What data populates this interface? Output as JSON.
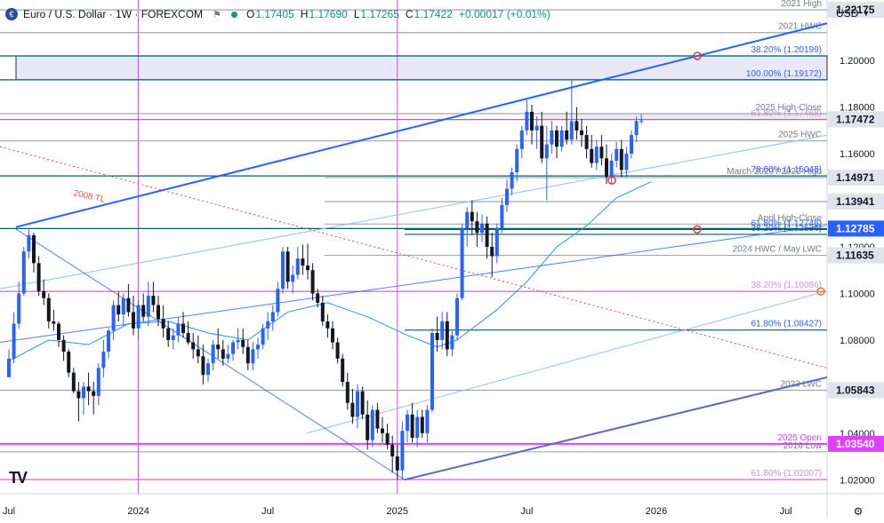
{
  "header": {
    "symbol": "Euro / U.S. Dollar · 1W · FOREXCOM",
    "open_label": "O",
    "open": "1.17405",
    "high_label": "H",
    "high": "1.17690",
    "low_label": "L",
    "low": "1.17265",
    "close_label": "C",
    "close": "1.17422",
    "change": "+0.00017 (+0.01%)",
    "currency": "USD"
  },
  "colors": {
    "up": "#2962ff",
    "down": "#131722",
    "fib_blue": "#2962ff",
    "fib_pink": "#ce93d8",
    "magenta": "#e040fb",
    "orange": "#f57c00",
    "red_trend": "#f44336",
    "purple_channel": "#5c6bc0",
    "level_grey": "#b2b5be",
    "teal_line": "#006064"
  },
  "chart_data": {
    "type": "candlestick",
    "timeframe": "1W",
    "ylim": [
      1.014,
      1.226
    ],
    "y_ticks": [
      1.02,
      1.04,
      1.06,
      1.08,
      1.1,
      1.12,
      1.14,
      1.16,
      1.18,
      1.2
    ],
    "y_tick_labels": [
      "1.02000",
      "1.04000",
      "1.06000",
      "1.08000",
      "1.10000",
      "1.12000",
      "1.14000",
      "1.16000",
      "1.18000",
      "1.20000"
    ],
    "x_ticks": [
      {
        "label": "Jul",
        "t": 0
      },
      {
        "label": "2024",
        "t": 26
      },
      {
        "label": "Jul",
        "t": 52
      },
      {
        "label": "2025",
        "t": 78
      },
      {
        "label": "Jul",
        "t": 104
      },
      {
        "label": "2026",
        "t": 130
      },
      {
        "label": "Jul",
        "t": 156
      }
    ],
    "candles": [
      [
        1.064,
        1.076,
        1.065,
        1.072
      ],
      [
        1.072,
        1.092,
        1.07,
        1.087
      ],
      [
        1.087,
        1.105,
        1.085,
        1.1
      ],
      [
        1.1,
        1.12,
        1.099,
        1.118
      ],
      [
        1.118,
        1.1276,
        1.115,
        1.125
      ],
      [
        1.125,
        1.126,
        1.109,
        1.113
      ],
      [
        1.113,
        1.116,
        1.099,
        1.101
      ],
      [
        1.101,
        1.106,
        1.095,
        1.098
      ],
      [
        1.098,
        1.1,
        1.085,
        1.088
      ],
      [
        1.088,
        1.093,
        1.084,
        1.087
      ],
      [
        1.087,
        1.088,
        1.077,
        1.08
      ],
      [
        1.08,
        1.082,
        1.071,
        1.075
      ],
      [
        1.075,
        1.076,
        1.064,
        1.066
      ],
      [
        1.066,
        1.068,
        1.057,
        1.058
      ],
      [
        1.058,
        1.062,
        1.045,
        1.055
      ],
      [
        1.055,
        1.062,
        1.048,
        1.06
      ],
      [
        1.06,
        1.066,
        1.052,
        1.058
      ],
      [
        1.058,
        1.062,
        1.048,
        1.056
      ],
      [
        1.056,
        1.07,
        1.052,
        1.068
      ],
      [
        1.068,
        1.08,
        1.064,
        1.075
      ],
      [
        1.075,
        1.085,
        1.072,
        1.084
      ],
      [
        1.084,
        1.097,
        1.08,
        1.095
      ],
      [
        1.095,
        1.101,
        1.088,
        1.091
      ],
      [
        1.091,
        1.1,
        1.086,
        1.098
      ],
      [
        1.098,
        1.104,
        1.09,
        1.092
      ],
      [
        1.092,
        1.099,
        1.082,
        1.085
      ],
      [
        1.085,
        1.097,
        1.08,
        1.095
      ],
      [
        1.095,
        1.1,
        1.088,
        1.09
      ],
      [
        1.09,
        1.105,
        1.086,
        1.099
      ],
      [
        1.099,
        1.105,
        1.092,
        1.095
      ],
      [
        1.095,
        1.099,
        1.086,
        1.089
      ],
      [
        1.089,
        1.095,
        1.081,
        1.085
      ],
      [
        1.085,
        1.088,
        1.077,
        1.08
      ],
      [
        1.08,
        1.085,
        1.076,
        1.082
      ],
      [
        1.082,
        1.09,
        1.079,
        1.087
      ],
      [
        1.087,
        1.092,
        1.081,
        1.083
      ],
      [
        1.083,
        1.088,
        1.078,
        1.079
      ],
      [
        1.079,
        1.083,
        1.072,
        1.076
      ],
      [
        1.076,
        1.082,
        1.07,
        1.073
      ],
      [
        1.073,
        1.078,
        1.061,
        1.065
      ],
      [
        1.065,
        1.072,
        1.062,
        1.07
      ],
      [
        1.07,
        1.08,
        1.067,
        1.078
      ],
      [
        1.078,
        1.085,
        1.072,
        1.076
      ],
      [
        1.076,
        1.08,
        1.069,
        1.072
      ],
      [
        1.072,
        1.078,
        1.07,
        1.074
      ],
      [
        1.074,
        1.08,
        1.071,
        1.079
      ],
      [
        1.079,
        1.085,
        1.076,
        1.08
      ],
      [
        1.08,
        1.085,
        1.074,
        1.077
      ],
      [
        1.077,
        1.08,
        1.067,
        1.07
      ],
      [
        1.07,
        1.079,
        1.067,
        1.076
      ],
      [
        1.076,
        1.081,
        1.072,
        1.078
      ],
      [
        1.078,
        1.087,
        1.076,
        1.085
      ],
      [
        1.085,
        1.092,
        1.08,
        1.088
      ],
      [
        1.088,
        1.095,
        1.084,
        1.092
      ],
      [
        1.092,
        1.105,
        1.09,
        1.102
      ],
      [
        1.102,
        1.12,
        1.1,
        1.118
      ],
      [
        1.118,
        1.12,
        1.102,
        1.105
      ],
      [
        1.105,
        1.112,
        1.1,
        1.108
      ],
      [
        1.108,
        1.12,
        1.106,
        1.115
      ],
      [
        1.115,
        1.121,
        1.108,
        1.112
      ],
      [
        1.112,
        1.1214,
        1.106,
        1.11
      ],
      [
        1.11,
        1.113,
        1.097,
        1.1
      ],
      [
        1.1,
        1.102,
        1.094,
        1.096
      ],
      [
        1.096,
        1.099,
        1.086,
        1.088
      ],
      [
        1.088,
        1.091,
        1.081,
        1.085
      ],
      [
        1.085,
        1.088,
        1.076,
        1.079
      ],
      [
        1.079,
        1.081,
        1.07,
        1.072
      ],
      [
        1.072,
        1.074,
        1.06,
        1.062
      ],
      [
        1.062,
        1.066,
        1.05,
        1.053
      ],
      [
        1.053,
        1.059,
        1.044,
        1.047
      ],
      [
        1.047,
        1.061,
        1.042,
        1.058
      ],
      [
        1.058,
        1.06,
        1.046,
        1.048
      ],
      [
        1.048,
        1.054,
        1.033,
        1.037
      ],
      [
        1.037,
        1.052,
        1.034,
        1.05
      ],
      [
        1.05,
        1.053,
        1.04,
        1.042
      ],
      [
        1.042,
        1.047,
        1.036,
        1.04
      ],
      [
        1.04,
        1.044,
        1.033,
        1.035
      ],
      [
        1.035,
        1.039,
        1.023,
        1.03
      ],
      [
        1.03,
        1.035,
        1.02,
        1.024
      ],
      [
        1.024,
        1.045,
        1.02,
        1.041
      ],
      [
        1.041,
        1.05,
        1.036,
        1.048
      ],
      [
        1.048,
        1.053,
        1.036,
        1.038
      ],
      [
        1.038,
        1.05,
        1.034,
        1.047
      ],
      [
        1.047,
        1.05,
        1.038,
        1.04
      ],
      [
        1.04,
        1.052,
        1.036,
        1.05
      ],
      [
        1.05,
        1.085,
        1.049,
        1.083
      ],
      [
        1.083,
        1.09,
        1.075,
        1.08
      ],
      [
        1.08,
        1.092,
        1.076,
        1.088
      ],
      [
        1.088,
        1.092,
        1.073,
        1.076
      ],
      [
        1.076,
        1.084,
        1.073,
        1.082
      ],
      [
        1.082,
        1.1,
        1.08,
        1.098
      ],
      [
        1.098,
        1.13,
        1.097,
        1.128
      ],
      [
        1.128,
        1.137,
        1.12,
        1.135
      ],
      [
        1.135,
        1.14,
        1.125,
        1.131
      ],
      [
        1.131,
        1.135,
        1.12,
        1.126
      ],
      [
        1.126,
        1.134,
        1.122,
        1.13
      ],
      [
        1.13,
        1.133,
        1.115,
        1.12
      ],
      [
        1.12,
        1.126,
        1.107,
        1.116
      ],
      [
        1.116,
        1.13,
        1.113,
        1.128
      ],
      [
        1.128,
        1.141,
        1.126,
        1.138
      ],
      [
        1.138,
        1.149,
        1.135,
        1.145
      ],
      [
        1.145,
        1.154,
        1.142,
        1.152
      ],
      [
        1.152,
        1.164,
        1.148,
        1.162
      ],
      [
        1.162,
        1.172,
        1.158,
        1.17
      ],
      [
        1.17,
        1.183,
        1.168,
        1.178
      ],
      [
        1.178,
        1.181,
        1.164,
        1.17
      ],
      [
        1.17,
        1.176,
        1.162,
        1.172
      ],
      [
        1.172,
        1.178,
        1.156,
        1.158
      ],
      [
        1.158,
        1.172,
        1.14,
        1.164
      ],
      [
        1.164,
        1.174,
        1.16,
        1.17
      ],
      [
        1.17,
        1.172,
        1.158,
        1.163
      ],
      [
        1.163,
        1.172,
        1.161,
        1.17
      ],
      [
        1.17,
        1.178,
        1.164,
        1.166
      ],
      [
        1.166,
        1.192,
        1.164,
        1.174
      ],
      [
        1.174,
        1.18,
        1.166,
        1.17
      ],
      [
        1.17,
        1.175,
        1.163,
        1.168
      ],
      [
        1.168,
        1.172,
        1.158,
        1.162
      ],
      [
        1.162,
        1.168,
        1.154,
        1.156
      ],
      [
        1.156,
        1.166,
        1.153,
        1.163
      ],
      [
        1.163,
        1.168,
        1.155,
        1.158
      ],
      [
        1.158,
        1.164,
        1.147,
        1.15
      ],
      [
        1.15,
        1.16,
        1.147,
        1.157
      ],
      [
        1.157,
        1.165,
        1.154,
        1.162
      ],
      [
        1.162,
        1.166,
        1.15,
        1.153
      ],
      [
        1.153,
        1.163,
        1.15,
        1.16
      ],
      [
        1.16,
        1.17,
        1.158,
        1.168
      ],
      [
        1.168,
        1.176,
        1.165,
        1.174
      ],
      [
        1.174,
        1.1769,
        1.1727,
        1.1742
      ]
    ],
    "moving_average": [
      [
        0,
        1.071
      ],
      [
        8,
        1.08
      ],
      [
        16,
        1.078
      ],
      [
        24,
        1.087
      ],
      [
        32,
        1.088
      ],
      [
        40,
        1.083
      ],
      [
        48,
        1.08
      ],
      [
        56,
        1.092
      ],
      [
        64,
        1.096
      ],
      [
        72,
        1.09
      ],
      [
        80,
        1.082
      ],
      [
        86,
        1.077
      ],
      [
        90,
        1.08
      ],
      [
        98,
        1.093
      ],
      [
        104,
        1.105
      ],
      [
        110,
        1.12
      ],
      [
        116,
        1.129
      ],
      [
        122,
        1.141
      ],
      [
        129,
        1.148
      ]
    ],
    "levels": [
      {
        "value": 1.22175,
        "label": "2021 High",
        "style": "grey"
      },
      {
        "value": 1.212,
        "label": "2021 HWC",
        "style": "grey"
      },
      {
        "value": 1.20199,
        "label": "38.20% (1.20199)",
        "style": "fib-blue"
      },
      {
        "value": 1.19172,
        "label": "100.00% (1.19172)",
        "style": "fib-blue"
      },
      {
        "value": 1.17468,
        "label": "61.80% (1.17468)",
        "style": "fib-pink"
      },
      {
        "value": 1.1772,
        "label": "2025 High-Close",
        "style": "grey"
      },
      {
        "value": 1.1655,
        "label": "2025 HWC",
        "style": "grey"
      },
      {
        "value": 1.14971,
        "label": "March 2020 / 2022 High",
        "style": "grey"
      },
      {
        "value": 1.15045,
        "label": "78.60% (1.15045)",
        "style": "fib-blue"
      },
      {
        "value": 1.13941,
        "label": "",
        "style": "grey"
      },
      {
        "value": 1.1298,
        "label": "April High-Close",
        "style": "grey"
      },
      {
        "value": 1.12536,
        "label": "38.20% (1.12536)",
        "style": "fib-blue"
      },
      {
        "value": 1.12785,
        "label": "",
        "style": "teal"
      },
      {
        "value": 1.12748,
        "label": "61.80% (1.12748)",
        "style": "fib-blue"
      },
      {
        "value": 1.11635,
        "label": "2024 HWC / May LWC",
        "style": "grey"
      },
      {
        "value": 1.10086,
        "label": "38.20% (1.10086)",
        "style": "fib-pink"
      },
      {
        "value": 1.08427,
        "label": "61.80% (1.08427)",
        "style": "fib-blue"
      },
      {
        "value": 1.05843,
        "label": "2023 LWC",
        "style": "grey"
      },
      {
        "value": 1.0354,
        "label": "2025 Open",
        "style": "magenta"
      },
      {
        "value": 1.032,
        "label": "2016 Low",
        "style": "grey"
      },
      {
        "value": 1.02007,
        "label": "61.80% (1.02007)",
        "style": "fib-pink"
      }
    ],
    "price_badges": [
      {
        "value": 1.22175,
        "text": "1.22175",
        "bg": "#e0e3eb",
        "fg": "#131722"
      },
      {
        "value": 1.17472,
        "text": "1.17472",
        "bg": "#e0e3eb",
        "fg": "#131722"
      },
      {
        "value": 1.14971,
        "text": "1.14971",
        "bg": "#e0e3eb",
        "fg": "#131722"
      },
      {
        "value": 1.13941,
        "text": "1.13941",
        "bg": "#e0e3eb",
        "fg": "#131722"
      },
      {
        "value": 1.12785,
        "text": "1.12785",
        "bg": "#2962ff",
        "fg": "#ffffff"
      },
      {
        "value": 1.11635,
        "text": "1.11635",
        "bg": "#e0e3eb",
        "fg": "#131722"
      },
      {
        "value": 1.05843,
        "text": "1.05843",
        "bg": "#e0e3eb",
        "fg": "#131722"
      },
      {
        "value": 1.0354,
        "text": "1.03540",
        "bg": "#e040fb",
        "fg": "#ffffff"
      }
    ],
    "trendline_label": "2008 TL"
  }
}
